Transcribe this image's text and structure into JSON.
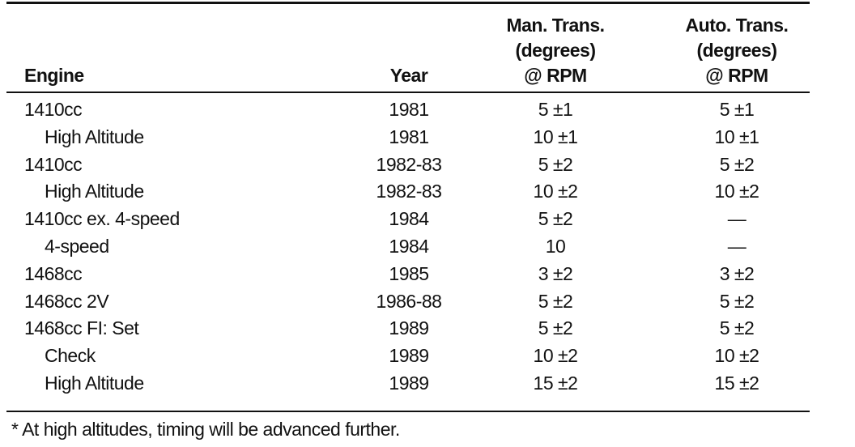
{
  "table": {
    "header": [
      [
        "Engine"
      ],
      [
        "Year"
      ],
      [
        "Man. Trans.",
        "(degrees)",
        "@ RPM"
      ],
      [
        "Auto. Trans.",
        "(degrees)",
        "@ RPM"
      ]
    ],
    "rows": [
      [
        "1410cc",
        "1981",
        "5 ±1",
        "5 ±1"
      ],
      [
        "High Altitude",
        "1981",
        "10 ±1",
        "10 ±1"
      ],
      [
        "1410cc",
        "1982-83",
        "5 ±2",
        "5 ±2"
      ],
      [
        "High Altitude",
        "1982-83",
        "10 ±2",
        "10 ±2"
      ],
      [
        "1410cc ex. 4-speed",
        "1984",
        "5 ±2",
        "—"
      ],
      [
        "4-speed",
        "1984",
        "10",
        "—"
      ],
      [
        "1468cc",
        "1985",
        "3 ±2",
        "3 ±2"
      ],
      [
        "1468cc 2V",
        "1986-88",
        "5 ±2",
        "5 ±2"
      ],
      [
        "1468cc FI: Set",
        "1989",
        "5 ±2",
        "5 ±2"
      ],
      [
        "Check",
        "1989",
        "10 ±2",
        "10 ±2"
      ],
      [
        "High Altitude",
        "1989",
        "15 ±2",
        "15 ±2"
      ]
    ]
  },
  "footnote": "* At high altitudes, timing will be advanced further."
}
